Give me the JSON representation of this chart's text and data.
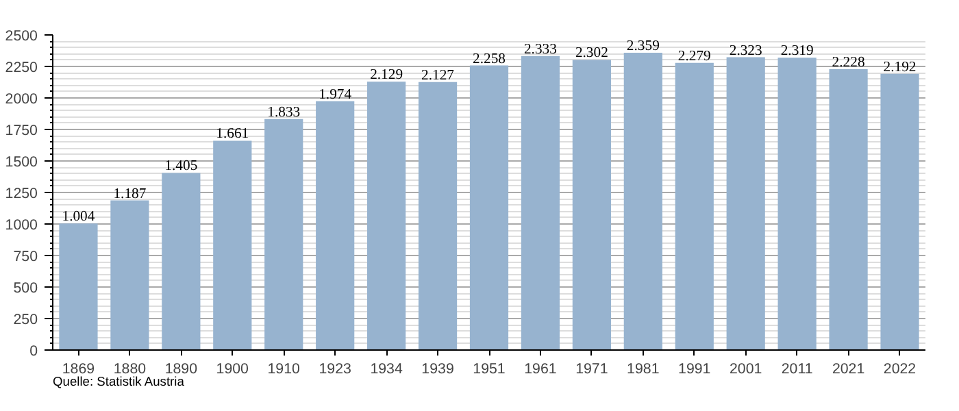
{
  "chart_data": {
    "type": "bar",
    "categories": [
      "1869",
      "1880",
      "1890",
      "1900",
      "1910",
      "1923",
      "1934",
      "1939",
      "1951",
      "1961",
      "1971",
      "1981",
      "1991",
      "2001",
      "2011",
      "2021",
      "2022"
    ],
    "values": [
      1004,
      1187,
      1405,
      1661,
      1833,
      1974,
      2129,
      2127,
      2258,
      2333,
      2302,
      2359,
      2279,
      2323,
      2319,
      2228,
      2192
    ],
    "value_labels": [
      "1.004",
      "1.187",
      "1.405",
      "1.661",
      "1.833",
      "1.974",
      "2.129",
      "2.127",
      "2.258",
      "2.333",
      "2.302",
      "2.359",
      "2.279",
      "2.323",
      "2.319",
      "2.228",
      "2.192"
    ],
    "color": "#97b3cf",
    "ylim": [
      0,
      2500
    ],
    "yticks": [
      0,
      250,
      500,
      750,
      1000,
      1250,
      1500,
      1750,
      2000,
      2250,
      2500
    ],
    "grid": "y",
    "annotations": [
      "Quelle: Statistik Austria"
    ]
  }
}
